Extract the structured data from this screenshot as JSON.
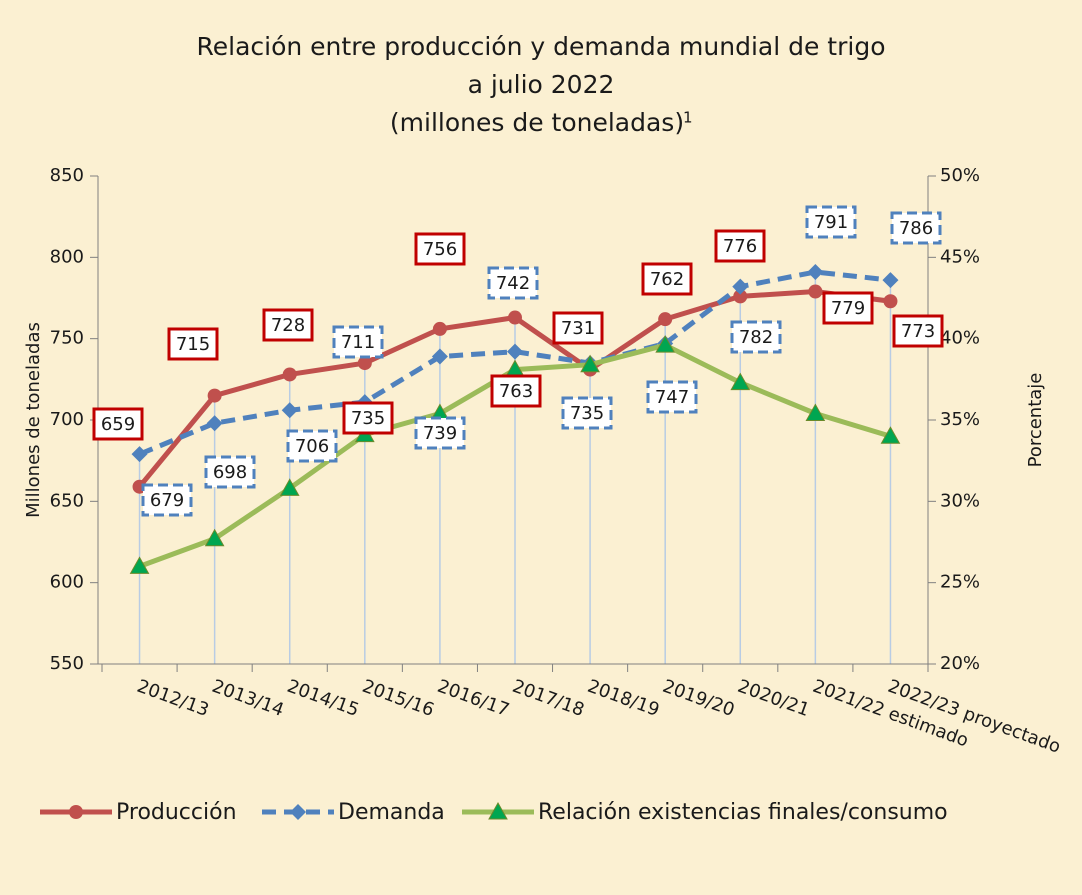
{
  "chart_data": {
    "type": "line",
    "title": [
      "Relación entre producción y demanda mundial de trigo",
      "a julio 2022"
    ],
    "subtitle": "(millones de toneladas)",
    "footnote_mark": "1",
    "y_label": "Millones de toneladas",
    "y2_label": "Porcentaje",
    "categories": [
      "2012/13",
      "2013/14",
      "2014/15",
      "2015/16",
      "2016/17",
      "2017/18",
      "2018/19",
      "2019/20",
      "2020/21",
      "2021/22 estimado",
      "2022/23 proyectado"
    ],
    "series": [
      {
        "name": "Producción",
        "color": "#c0504d",
        "marker": "circle",
        "line": "solid",
        "label_box": "solid",
        "values": [
          659,
          715,
          728,
          735,
          756,
          763,
          731,
          762,
          776,
          779,
          773
        ]
      },
      {
        "name": "Demanda",
        "color": "#4f81bd",
        "marker": "diamond",
        "line": "dashed",
        "label_box": "dashed",
        "values": [
          679,
          698,
          706,
          711,
          739,
          742,
          735,
          747,
          782,
          791,
          786
        ]
      },
      {
        "name": "Relación existencias finales/consumo",
        "color": "#9bbb59",
        "marker": "triangle",
        "line": "solid",
        "axis": "y2",
        "values": [
          26.0,
          27.7,
          30.8,
          34.1,
          35.4,
          38.1,
          38.4,
          39.6,
          37.3,
          35.4,
          34.0
        ]
      }
    ],
    "ylim": [
      550,
      850
    ],
    "yticks": [
      550,
      600,
      650,
      700,
      750,
      800,
      850
    ],
    "y2lim": [
      20,
      50
    ],
    "y2ticks": [
      {
        "value": 20,
        "label": "20%"
      },
      {
        "value": 25,
        "label": "25%"
      },
      {
        "value": 30,
        "label": "30%"
      },
      {
        "value": 35,
        "label": "35%"
      },
      {
        "value": 40,
        "label": "40%"
      },
      {
        "value": 45,
        "label": "45%"
      },
      {
        "value": 50,
        "label": "50%"
      }
    ],
    "legend": "bottom"
  }
}
